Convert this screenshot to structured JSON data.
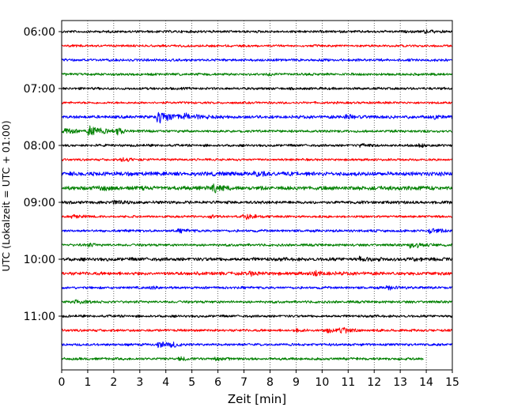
{
  "chart_data": {
    "type": "line",
    "title": "",
    "xlabel": "Zeit  [min]",
    "ylabel": "UTC (Lokalzeit = UTC + 01:00)",
    "xlim": [
      0,
      15
    ],
    "x_ticks": [
      "0",
      "1",
      "2",
      "3",
      "4",
      "5",
      "6",
      "7",
      "8",
      "9",
      "10",
      "11",
      "12",
      "13",
      "14",
      "15"
    ],
    "y_tick_labels": [
      "06:00",
      "07:00",
      "08:00",
      "09:00",
      "10:00",
      "11:00"
    ],
    "trace_interval_min": 15,
    "grid": "vertical dotted at each minute",
    "trace_colors": [
      "#000000",
      "#ff0000",
      "#0000ff",
      "#008000"
    ],
    "traces": [
      {
        "start": "06:00",
        "end_min": 15,
        "color": "#000000",
        "amplitude": 1.0,
        "events": [
          {
            "min": 14.0,
            "amp": 1.6
          }
        ]
      },
      {
        "start": "06:15",
        "end_min": 15,
        "color": "#ff0000",
        "amplitude": 0.9,
        "events": []
      },
      {
        "start": "06:30",
        "end_min": 15,
        "color": "#0000ff",
        "amplitude": 1.0,
        "events": []
      },
      {
        "start": "06:45",
        "end_min": 15,
        "color": "#008000",
        "amplitude": 1.0,
        "events": [
          {
            "min": 8.0,
            "amp": 1.5
          }
        ]
      },
      {
        "start": "07:00",
        "end_min": 15,
        "color": "#000000",
        "amplitude": 1.0,
        "events": []
      },
      {
        "start": "07:15",
        "end_min": 15,
        "color": "#ff0000",
        "amplitude": 0.9,
        "events": []
      },
      {
        "start": "07:30",
        "end_min": 15,
        "color": "#0000ff",
        "amplitude": 1.2,
        "events": [
          {
            "min": 3.8,
            "amp": 8.0
          },
          {
            "min": 4.8,
            "amp": 4.0
          },
          {
            "min": 11.0,
            "amp": 2.0
          },
          {
            "min": 14.3,
            "amp": 2.2
          }
        ]
      },
      {
        "start": "07:45",
        "end_min": 15,
        "color": "#008000",
        "amplitude": 1.0,
        "events": [
          {
            "min": 0.2,
            "amp": 3.5
          },
          {
            "min": 1.1,
            "amp": 7.0
          },
          {
            "min": 2.2,
            "amp": 3.0
          }
        ]
      },
      {
        "start": "08:00",
        "end_min": 15,
        "color": "#000000",
        "amplitude": 1.0,
        "events": [
          {
            "min": 11.5,
            "amp": 2.0
          },
          {
            "min": 13.8,
            "amp": 1.8
          }
        ]
      },
      {
        "start": "08:15",
        "end_min": 15,
        "color": "#ff0000",
        "amplitude": 0.9,
        "events": [
          {
            "min": 2.4,
            "amp": 2.5
          }
        ]
      },
      {
        "start": "08:30",
        "end_min": 15,
        "color": "#0000ff",
        "amplitude": 1.6,
        "events": [
          {
            "min": 7.5,
            "amp": 2.5
          }
        ]
      },
      {
        "start": "08:45",
        "end_min": 15,
        "color": "#008000",
        "amplitude": 1.6,
        "events": [
          {
            "min": 5.9,
            "amp": 4.0
          },
          {
            "min": 1.5,
            "amp": 2.0
          }
        ]
      },
      {
        "start": "09:00",
        "end_min": 15,
        "color": "#000000",
        "amplitude": 1.2,
        "events": [
          {
            "min": 2.1,
            "amp": 2.5
          }
        ]
      },
      {
        "start": "09:15",
        "end_min": 15,
        "color": "#ff0000",
        "amplitude": 0.9,
        "events": [
          {
            "min": 0.5,
            "amp": 2.0
          },
          {
            "min": 5.8,
            "amp": 2.2
          },
          {
            "min": 7.1,
            "amp": 3.5
          }
        ]
      },
      {
        "start": "09:30",
        "end_min": 15,
        "color": "#0000ff",
        "amplitude": 1.0,
        "events": [
          {
            "min": 4.6,
            "amp": 1.8
          },
          {
            "min": 14.2,
            "amp": 3.5
          }
        ]
      },
      {
        "start": "09:45",
        "end_min": 15,
        "color": "#008000",
        "amplitude": 1.0,
        "events": [
          {
            "min": 13.5,
            "amp": 4.0
          },
          {
            "min": 1.0,
            "amp": 1.8
          }
        ]
      },
      {
        "start": "10:00",
        "end_min": 15,
        "color": "#000000",
        "amplitude": 1.4,
        "events": [
          {
            "min": 11.5,
            "amp": 2.0
          },
          {
            "min": 13.5,
            "amp": 2.0
          }
        ]
      },
      {
        "start": "10:15",
        "end_min": 15,
        "color": "#ff0000",
        "amplitude": 1.3,
        "events": [
          {
            "min": 7.3,
            "amp": 2.0
          },
          {
            "min": 9.8,
            "amp": 2.5
          }
        ]
      },
      {
        "start": "10:30",
        "end_min": 15,
        "color": "#0000ff",
        "amplitude": 1.0,
        "events": [
          {
            "min": 12.6,
            "amp": 2.2
          },
          {
            "min": 3.5,
            "amp": 1.5
          }
        ]
      },
      {
        "start": "10:45",
        "end_min": 15,
        "color": "#008000",
        "amplitude": 1.0,
        "events": [
          {
            "min": 0.6,
            "amp": 2.5
          }
        ]
      },
      {
        "start": "11:00",
        "end_min": 15,
        "color": "#000000",
        "amplitude": 1.0,
        "events": []
      },
      {
        "start": "11:15",
        "end_min": 15,
        "color": "#ff0000",
        "amplitude": 1.0,
        "events": [
          {
            "min": 10.3,
            "amp": 3.0
          },
          {
            "min": 10.8,
            "amp": 2.5
          },
          {
            "min": 9.0,
            "amp": 1.5
          }
        ]
      },
      {
        "start": "11:30",
        "end_min": 15,
        "color": "#0000ff",
        "amplitude": 1.0,
        "events": [
          {
            "min": 3.8,
            "amp": 3.5
          },
          {
            "min": 4.3,
            "amp": 2.0
          }
        ]
      },
      {
        "start": "11:45",
        "end_min": 13.9,
        "color": "#008000",
        "amplitude": 1.0,
        "events": [
          {
            "min": 4.6,
            "amp": 2.0
          },
          {
            "min": 6.0,
            "amp": 1.5
          }
        ]
      }
    ]
  }
}
